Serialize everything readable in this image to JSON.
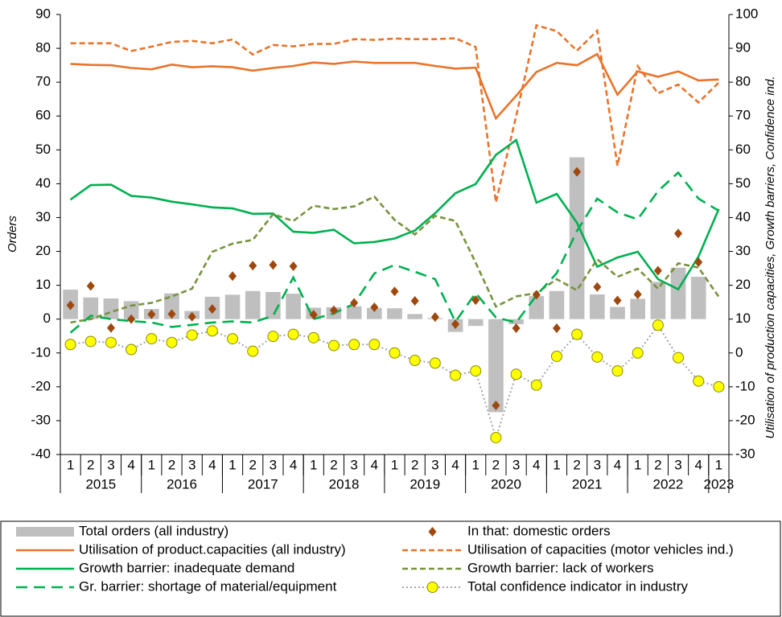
{
  "chart_data": {
    "type": "combo",
    "y_label": "Orders",
    "y2_label": "Utilisation of production capacities, Growth barriers, Confidence ind.",
    "categories": [
      "1",
      "2",
      "3",
      "4",
      "1",
      "2",
      "3",
      "4",
      "1",
      "2",
      "3",
      "4",
      "1",
      "2",
      "3",
      "4",
      "1",
      "2",
      "3",
      "4",
      "1",
      "2",
      "3",
      "4",
      "1",
      "2",
      "3",
      "4",
      "1",
      "2",
      "3",
      "4",
      "1"
    ],
    "groups": [
      "2015",
      "2016",
      "2017",
      "2018",
      "2019",
      "2020",
      "2021",
      "2022",
      "2023"
    ],
    "ylim": [
      -40,
      90
    ],
    "yticks": [
      -40,
      -30,
      -20,
      -10,
      0,
      10,
      20,
      30,
      40,
      50,
      60,
      70,
      80,
      90
    ],
    "y2lim": [
      -30,
      100
    ],
    "y2ticks": [
      -30,
      -20,
      -10,
      0,
      10,
      20,
      30,
      40,
      50,
      60,
      70,
      80,
      90,
      100
    ],
    "series": [
      {
        "name": "Total orders (all industry)",
        "type": "bar",
        "color": "#bfbfbf",
        "axis": "y",
        "values": [
          8.7,
          6.4,
          6.1,
          5.3,
          3.0,
          7.6,
          2.4,
          6.6,
          7.2,
          8.3,
          8.0,
          7.5,
          3.4,
          3.5,
          3.8,
          3.3,
          3.2,
          1.5,
          0.3,
          -3.8,
          -2.0,
          -27.5,
          -1.5,
          6.8,
          8.3,
          47.8,
          7.3,
          3.6,
          6.0,
          11.0,
          15.2,
          12.5,
          null
        ]
      },
      {
        "name": "In that: domestic orders",
        "type": "scatter",
        "marker": "diamond",
        "color": "#9e480e",
        "axis": "y",
        "values": [
          4.1,
          9.8,
          -2.6,
          0.0,
          1.4,
          1.5,
          0.7,
          3.0,
          12.7,
          15.8,
          16.0,
          15.6,
          1.3,
          2.6,
          4.8,
          3.5,
          8.2,
          5.4,
          0.6,
          -1.5,
          5.6,
          -25.5,
          -2.7,
          7.2,
          -2.7,
          43.5,
          9.5,
          5.5,
          7.3,
          14.3,
          25.3,
          16.8,
          null
        ]
      },
      {
        "name": "Utilisation of product.capacities (all industry)",
        "type": "line",
        "dash": "solid",
        "color": "#e8742a",
        "axis": "y2",
        "values": [
          85.4,
          85.1,
          85.0,
          84.2,
          83.8,
          85.2,
          84.4,
          84.7,
          84.4,
          83.4,
          84.2,
          84.8,
          85.8,
          85.4,
          86.1,
          85.7,
          85.7,
          85.7,
          84.8,
          84.0,
          84.3,
          69.3,
          76.0,
          83.0,
          85.7,
          85.0,
          88.3,
          76.3,
          83.2,
          81.6,
          83.2,
          80.5,
          80.8
        ]
      },
      {
        "name": "Utilisation of capacities (motor vehicles ind.)",
        "type": "line",
        "dash": "dashed",
        "color": "#e8742a",
        "axis": "y2",
        "values": [
          91.5,
          91.5,
          91.5,
          89.2,
          90.5,
          91.9,
          92.2,
          91.5,
          92.6,
          88.2,
          91.0,
          90.6,
          91.3,
          91.3,
          92.7,
          92.5,
          92.9,
          92.7,
          92.7,
          93.0,
          90.4,
          44.5,
          70.0,
          96.8,
          95.1,
          89.3,
          95.2,
          55.3,
          84.7,
          76.7,
          79.3,
          74.0,
          79.9
        ]
      },
      {
        "name": "Growth barrier: inadequate demand",
        "type": "line",
        "dash": "solid",
        "color": "#00b050",
        "axis": "y2",
        "values": [
          45.3,
          49.6,
          49.7,
          46.4,
          45.9,
          44.7,
          43.9,
          43.0,
          42.7,
          41.1,
          41.2,
          35.8,
          35.5,
          36.4,
          32.4,
          32.8,
          33.8,
          36.2,
          41.3,
          47.2,
          49.9,
          58.5,
          62.9,
          44.4,
          47.0,
          38.5,
          25.5,
          28.2,
          29.9,
          21.8,
          18.8,
          28.5,
          42.5
        ]
      },
      {
        "name": "Growth barrier: lack of workers",
        "type": "line",
        "dash": "dashed",
        "color": "#77933c",
        "axis": "y2",
        "values": [
          9.0,
          10.0,
          12.1,
          14.0,
          14.8,
          16.7,
          19.0,
          29.9,
          32.3,
          33.4,
          41.0,
          39.0,
          43.5,
          42.5,
          43.3,
          46.2,
          39.3,
          35.0,
          40.5,
          39.0,
          26.7,
          13.7,
          16.7,
          17.7,
          21.8,
          18.5,
          27.7,
          22.5,
          24.9,
          19.0,
          26.5,
          25.2,
          16.6
        ]
      },
      {
        "name": "Gr. barrier: shortage of material/equipment",
        "type": "line",
        "dash": "long-dashed",
        "color": "#00b050",
        "axis": "y2",
        "values": [
          6.0,
          11.0,
          10.0,
          9.4,
          9.0,
          7.7,
          8.3,
          9.0,
          9.3,
          9.0,
          11.0,
          22.3,
          10.0,
          11.7,
          14.5,
          23.5,
          26.0,
          24.0,
          21.8,
          9.2,
          17.7,
          10.5,
          9.0,
          17.0,
          23.6,
          36.0,
          45.6,
          41.5,
          39.5,
          47.8,
          53.3,
          45.6,
          42.0
        ]
      },
      {
        "name": "Total confidence indicator in industry",
        "type": "line",
        "dash": "dotted",
        "marker": "circle",
        "color": "#a6a6a6",
        "marker_color": "#ffff00",
        "axis": "y2",
        "values": [
          2.5,
          3.4,
          3.1,
          1.0,
          4.2,
          3.1,
          5.3,
          6.5,
          4.2,
          0.5,
          4.9,
          5.5,
          4.5,
          2.2,
          2.5,
          2.5,
          0.0,
          -2.2,
          -3.0,
          -6.6,
          -5.3,
          -25.0,
          -6.3,
          -9.5,
          -1.0,
          5.5,
          -1.2,
          -5.3,
          0.0,
          8.2,
          -1.4,
          -8.3,
          -10.0
        ]
      }
    ]
  }
}
